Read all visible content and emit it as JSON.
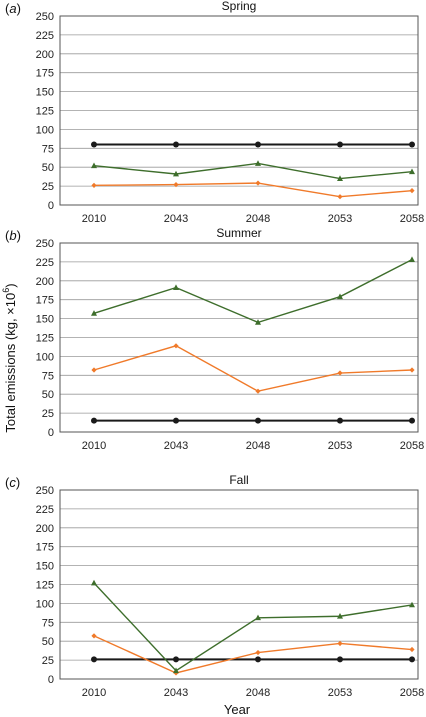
{
  "ylabel": "Total emissions (kg, ×10",
  "ylabel_sup": "6",
  "ylabel_end": ")",
  "xlabel": "Year",
  "colors": {
    "black": "#1a1a1a",
    "orange": "#f07a2a",
    "green": "#3e6e2c"
  },
  "chart_data": [
    {
      "type": "line",
      "panel_label": "a",
      "title": "Spring",
      "categories": [
        "2010",
        "2043",
        "2048",
        "2053",
        "2058"
      ],
      "ylim": [
        0,
        250
      ],
      "yticks": [
        0,
        25,
        50,
        75,
        100,
        125,
        150,
        175,
        200,
        225,
        250
      ],
      "grid": true,
      "series": [
        {
          "color": "black",
          "marker": "circle",
          "values": [
            80,
            80,
            80,
            80,
            80
          ]
        },
        {
          "color": "orange",
          "marker": "diamond",
          "values": [
            26,
            27,
            29,
            11,
            19
          ]
        },
        {
          "color": "green",
          "marker": "triangle",
          "values": [
            52,
            41,
            55,
            35,
            44
          ]
        }
      ]
    },
    {
      "type": "line",
      "panel_label": "b",
      "title": "Summer",
      "categories": [
        "2010",
        "2043",
        "2048",
        "2053",
        "2058"
      ],
      "ylim": [
        0,
        250
      ],
      "yticks": [
        0,
        25,
        50,
        75,
        100,
        125,
        150,
        175,
        200,
        225,
        250
      ],
      "grid": true,
      "series": [
        {
          "color": "black",
          "marker": "circle",
          "values": [
            15,
            15,
            15,
            15,
            15
          ]
        },
        {
          "color": "orange",
          "marker": "diamond",
          "values": [
            82,
            114,
            54,
            78,
            82
          ]
        },
        {
          "color": "green",
          "marker": "triangle",
          "values": [
            157,
            191,
            145,
            179,
            228
          ]
        }
      ]
    },
    {
      "type": "line",
      "panel_label": "c",
      "title": "Fall",
      "categories": [
        "2010",
        "2043",
        "2048",
        "2053",
        "2058"
      ],
      "ylim": [
        0,
        250
      ],
      "yticks": [
        0,
        25,
        50,
        75,
        100,
        125,
        150,
        175,
        200,
        225,
        250
      ],
      "grid": true,
      "series": [
        {
          "color": "black",
          "marker": "circle",
          "values": [
            26,
            26,
            26,
            26,
            26
          ]
        },
        {
          "color": "orange",
          "marker": "diamond",
          "values": [
            57,
            8,
            35,
            47,
            39
          ]
        },
        {
          "color": "green",
          "marker": "triangle",
          "values": [
            127,
            11,
            81,
            83,
            98
          ]
        }
      ]
    }
  ]
}
